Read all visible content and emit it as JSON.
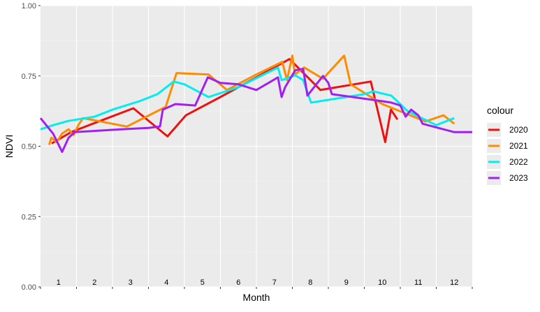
{
  "chart_data": {
    "type": "line",
    "xlabel": "Month",
    "ylabel": "NDVI",
    "x_tick_labels": [
      "1",
      "2",
      "3",
      "4",
      "5",
      "6",
      "7",
      "8",
      "9",
      "10",
      "11",
      "12"
    ],
    "x_range": [
      1,
      13
    ],
    "y_range": [
      0,
      1
    ],
    "y_ticks": [
      0,
      0.25,
      0.5,
      0.75,
      1.0
    ],
    "y_tick_labels": [
      "0.00",
      "0.25",
      "0.50",
      "0.75",
      "1.00"
    ],
    "grid": true,
    "panel_background": "#ebebeb",
    "legend_title": "colour",
    "legend_position": "right",
    "series": [
      {
        "name": "2020",
        "color": "#ee1111",
        "points": [
          [
            1.31,
            0.51
          ],
          [
            1.85,
            0.55
          ],
          [
            2.45,
            0.58
          ],
          [
            3.58,
            0.635
          ],
          [
            4.53,
            0.535
          ],
          [
            5.04,
            0.61
          ],
          [
            6.0,
            0.675
          ],
          [
            7.0,
            0.745
          ],
          [
            7.92,
            0.81
          ],
          [
            8.78,
            0.7
          ],
          [
            10.18,
            0.73
          ],
          [
            10.58,
            0.515
          ],
          [
            10.74,
            0.63
          ],
          [
            10.92,
            0.595
          ]
        ]
      },
      {
        "name": "2021",
        "color": "#ff8c00",
        "points": [
          [
            1.24,
            0.505
          ],
          [
            1.3,
            0.53
          ],
          [
            1.45,
            0.515
          ],
          [
            1.6,
            0.545
          ],
          [
            1.78,
            0.56
          ],
          [
            1.92,
            0.54
          ],
          [
            2.05,
            0.575
          ],
          [
            2.18,
            0.6
          ],
          [
            3.4,
            0.57
          ],
          [
            4.48,
            0.64
          ],
          [
            4.78,
            0.76
          ],
          [
            5.67,
            0.755
          ],
          [
            6.18,
            0.7
          ],
          [
            7.0,
            0.755
          ],
          [
            7.72,
            0.8
          ],
          [
            7.85,
            0.735
          ],
          [
            8.0,
            0.822
          ],
          [
            8.07,
            0.755
          ],
          [
            8.33,
            0.78
          ],
          [
            8.85,
            0.74
          ],
          [
            9.44,
            0.822
          ],
          [
            9.62,
            0.72
          ],
          [
            10.5,
            0.65
          ],
          [
            11.7,
            0.588
          ],
          [
            12.2,
            0.61
          ],
          [
            12.5,
            0.58
          ]
        ]
      },
      {
        "name": "2022",
        "color": "#00eeee",
        "points": [
          [
            1.0,
            0.56
          ],
          [
            1.35,
            0.575
          ],
          [
            1.78,
            0.59
          ],
          [
            2.5,
            0.605
          ],
          [
            3.0,
            0.63
          ],
          [
            3.75,
            0.66
          ],
          [
            4.25,
            0.685
          ],
          [
            4.7,
            0.73
          ],
          [
            5.0,
            0.72
          ],
          [
            5.67,
            0.675
          ],
          [
            6.5,
            0.71
          ],
          [
            7.0,
            0.742
          ],
          [
            7.6,
            0.78
          ],
          [
            7.7,
            0.735
          ],
          [
            8.08,
            0.752
          ],
          [
            8.3,
            0.735
          ],
          [
            8.52,
            0.655
          ],
          [
            10.0,
            0.685
          ],
          [
            10.25,
            0.695
          ],
          [
            10.75,
            0.68
          ],
          [
            11.0,
            0.65
          ],
          [
            11.2,
            0.625
          ],
          [
            12.0,
            0.575
          ],
          [
            12.5,
            0.6
          ]
        ]
      },
      {
        "name": "2023",
        "color": "#a020f0",
        "points": [
          [
            1.0,
            0.6
          ],
          [
            1.35,
            0.545
          ],
          [
            1.6,
            0.48
          ],
          [
            1.78,
            0.53
          ],
          [
            1.95,
            0.55
          ],
          [
            2.6,
            0.555
          ],
          [
            3.25,
            0.56
          ],
          [
            4.0,
            0.565
          ],
          [
            4.32,
            0.57
          ],
          [
            4.4,
            0.63
          ],
          [
            4.75,
            0.65
          ],
          [
            5.3,
            0.645
          ],
          [
            5.65,
            0.745
          ],
          [
            6.0,
            0.725
          ],
          [
            6.5,
            0.72
          ],
          [
            7.0,
            0.7
          ],
          [
            7.6,
            0.745
          ],
          [
            7.7,
            0.675
          ],
          [
            7.8,
            0.71
          ],
          [
            8.08,
            0.77
          ],
          [
            8.3,
            0.775
          ],
          [
            8.42,
            0.68
          ],
          [
            8.85,
            0.75
          ],
          [
            9.0,
            0.725
          ],
          [
            9.1,
            0.685
          ],
          [
            10.5,
            0.66
          ],
          [
            10.75,
            0.655
          ],
          [
            11.0,
            0.645
          ],
          [
            11.15,
            0.605
          ],
          [
            11.3,
            0.63
          ],
          [
            11.5,
            0.61
          ],
          [
            11.62,
            0.58
          ],
          [
            12.5,
            0.55
          ],
          [
            13.0,
            0.55
          ]
        ]
      }
    ]
  }
}
